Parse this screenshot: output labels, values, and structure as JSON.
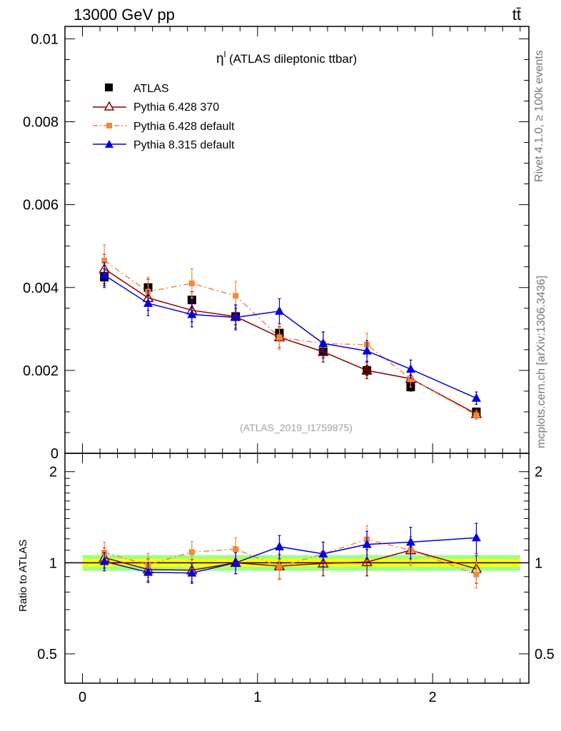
{
  "header": {
    "left_title": "13000 GeV pp",
    "right_title": "tt̄"
  },
  "side_labels": {
    "rivet": "Rivet 4.1.0, ≥ 100k events",
    "mcplots": "mcplots.cern.ch [arXiv:1306.3436]"
  },
  "chart_data": [
    {
      "type": "scatter",
      "panel": "main",
      "title": "η^l (ATLAS dileptonic ttbar)",
      "title_symbol": "η",
      "title_sup": "l",
      "title_text": " (ATLAS dileptonic ttbar)",
      "watermark": "(ATLAS_2019_I1759875)",
      "xlim": [
        -0.1,
        2.55
      ],
      "ylim": [
        0,
        0.0103
      ],
      "ytick_values": [
        0,
        0.002,
        0.004,
        0.006,
        0.008,
        0.01
      ],
      "ytick_labels": [
        "0",
        "0.002",
        "0.004",
        "0.006",
        "0.008",
        "0.01"
      ],
      "x": [
        0.125,
        0.375,
        0.625,
        0.875,
        1.125,
        1.375,
        1.625,
        1.875,
        2.25
      ],
      "x_err": [
        0.125,
        0.125,
        0.125,
        0.125,
        0.125,
        0.125,
        0.125,
        0.125,
        0.25
      ],
      "series": [
        {
          "name": "ATLAS",
          "color": "#000000",
          "marker": "square",
          "line": "none",
          "values": [
            0.00425,
            0.004,
            0.0037,
            0.0033,
            0.0029,
            0.00245,
            0.002,
            0.0016,
            0.001
          ],
          "err": [
            0.0002,
            0.0002,
            0.0002,
            0.0002,
            0.00015,
            0.00015,
            0.00012,
            0.0001,
            8e-05
          ]
        },
        {
          "name": "Pythia 6.428 370",
          "color": "#8b0000",
          "marker": "triangle-open",
          "line": "solid",
          "values": [
            0.00445,
            0.00375,
            0.00345,
            0.0033,
            0.0028,
            0.00245,
            0.002,
            0.0018,
            0.00095
          ],
          "err": [
            0.00035,
            0.0003,
            0.00028,
            0.00028,
            0.00025,
            0.00025,
            0.0002,
            0.0002,
            0.0001
          ]
        },
        {
          "name": "Pythia 6.428 default",
          "color": "#f5873c",
          "marker": "square-small",
          "line": "dashdot",
          "values": [
            0.00465,
            0.0039,
            0.0041,
            0.0038,
            0.0028,
            0.00265,
            0.00262,
            0.0018,
            0.00092
          ],
          "err": [
            0.00038,
            0.00035,
            0.00035,
            0.00035,
            0.0003,
            0.00028,
            0.00028,
            0.0002,
            0.0001
          ]
        },
        {
          "name": "Pythia 8.315 default",
          "color": "#0000dd",
          "marker": "triangle",
          "line": "solid",
          "values": [
            0.0043,
            0.00362,
            0.00335,
            0.00328,
            0.00343,
            0.00265,
            0.00247,
            0.00203,
            0.00133
          ],
          "err": [
            0.0003,
            0.0003,
            0.0003,
            0.0003,
            0.0003,
            0.00028,
            0.00025,
            0.00022,
            0.00015
          ]
        }
      ]
    },
    {
      "type": "scatter",
      "panel": "ratio",
      "ylabel": "Ratio to ATLAS",
      "ylim": [
        0.4,
        2.3
      ],
      "ytick_values": [
        0.5,
        1,
        2
      ],
      "ytick_labels": [
        "0.5",
        "1",
        "2"
      ],
      "xtick_values": [
        0,
        1,
        2
      ],
      "xtick_labels": [
        "0",
        "1",
        "2"
      ],
      "xlim": [
        -0.1,
        2.55
      ],
      "band": {
        "inner": [
          0.97,
          1.03
        ],
        "outer": [
          0.94,
          1.06
        ],
        "inner_color": "#ffff00",
        "outer_color": "#9dff8c"
      },
      "x": [
        0.125,
        0.375,
        0.625,
        0.875,
        1.125,
        1.375,
        1.625,
        1.875,
        2.25
      ],
      "series": [
        {
          "name": "Pythia 6.428 370",
          "color": "#8b0000",
          "marker": "triangle-open",
          "line": "solid",
          "values": [
            1.04,
            0.95,
            0.945,
            1.0,
            0.975,
            0.995,
            1.005,
            1.1,
            0.955
          ],
          "err": [
            0.08,
            0.08,
            0.08,
            0.08,
            0.09,
            0.09,
            0.1,
            0.12,
            0.1
          ]
        },
        {
          "name": "Pythia 6.428 default",
          "color": "#f5873c",
          "marker": "square-small",
          "line": "dashdot",
          "values": [
            1.08,
            0.985,
            1.085,
            1.11,
            0.97,
            1.07,
            1.195,
            1.1,
            0.915
          ],
          "err": [
            0.09,
            0.09,
            0.09,
            0.1,
            0.09,
            0.1,
            0.13,
            0.12,
            0.09
          ]
        },
        {
          "name": "Pythia 8.315 default",
          "color": "#0000dd",
          "marker": "triangle",
          "line": "solid",
          "values": [
            1.01,
            0.93,
            0.925,
            1.0,
            1.13,
            1.07,
            1.15,
            1.17,
            1.21
          ],
          "err": [
            0.07,
            0.07,
            0.07,
            0.08,
            0.1,
            0.1,
            0.12,
            0.14,
            0.14
          ]
        }
      ]
    }
  ]
}
